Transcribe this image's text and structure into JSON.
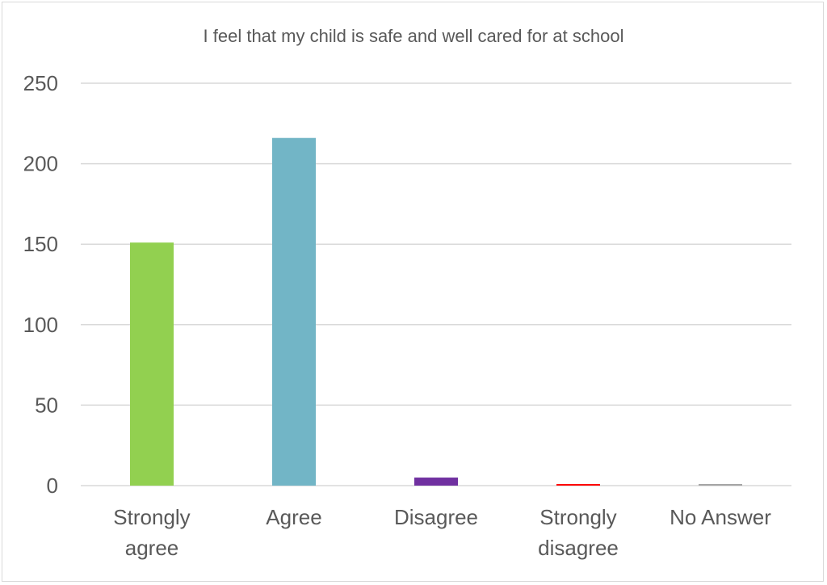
{
  "chart_data": {
    "type": "bar",
    "title": "I feel that my child is safe and well cared for at school",
    "xlabel": "",
    "ylabel": "",
    "categories": [
      [
        "Strongly",
        "agree"
      ],
      [
        "Agree"
      ],
      [
        "Disagree"
      ],
      [
        "Strongly",
        "disagree"
      ],
      [
        "No Answer"
      ]
    ],
    "values": [
      151,
      216,
      5,
      1,
      1
    ],
    "colors": [
      "#92d050",
      "#72b5c6",
      "#7030a0",
      "#ff0000",
      "#a6a6a6"
    ],
    "ylim": [
      0,
      250
    ],
    "yticks": [
      0,
      50,
      100,
      150,
      200,
      250
    ],
    "grid": true,
    "legend": "none"
  }
}
